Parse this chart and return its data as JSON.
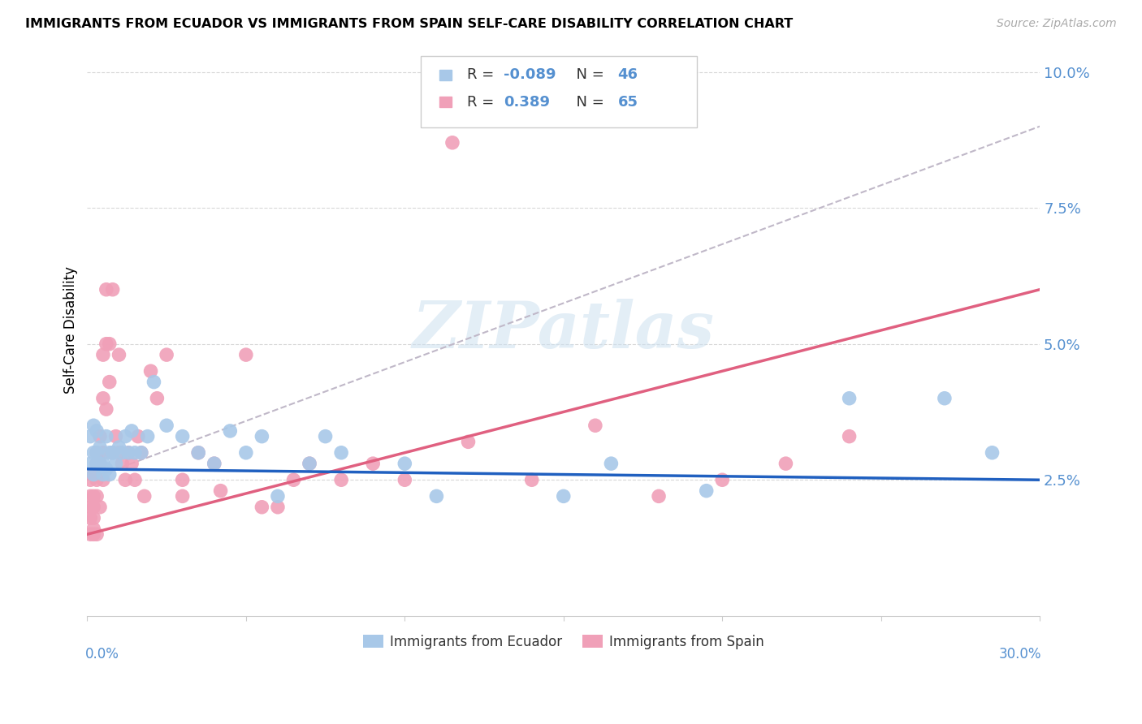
{
  "title": "IMMIGRANTS FROM ECUADOR VS IMMIGRANTS FROM SPAIN SELF-CARE DISABILITY CORRELATION CHART",
  "source": "Source: ZipAtlas.com",
  "ylabel": "Self-Care Disability",
  "xlim": [
    0.0,
    0.3
  ],
  "ylim": [
    0.0,
    0.105
  ],
  "yticks": [
    0.025,
    0.05,
    0.075,
    0.1
  ],
  "ytick_labels": [
    "2.5%",
    "5.0%",
    "7.5%",
    "10.0%"
  ],
  "xticks": [
    0.0,
    0.05,
    0.1,
    0.15,
    0.2,
    0.25,
    0.3
  ],
  "ecuador_color": "#a8c8e8",
  "spain_color": "#f0a0b8",
  "ecuador_line_color": "#2060c0",
  "spain_line_color": "#e06080",
  "dash_line_color": "#c0b8c8",
  "ecuador_R": -0.089,
  "ecuador_N": 46,
  "spain_R": 0.389,
  "spain_N": 65,
  "legend_label_ecuador": "Immigrants from Ecuador",
  "legend_label_spain": "Immigrants from Spain",
  "watermark": "ZIPatlas",
  "ecuador_line_x0": 0.0,
  "ecuador_line_y0": 0.027,
  "ecuador_line_x1": 0.3,
  "ecuador_line_y1": 0.025,
  "spain_line_x0": 0.0,
  "spain_line_y0": 0.015,
  "spain_line_x1": 0.3,
  "spain_line_y1": 0.06,
  "dash_line_x0": 0.0,
  "dash_line_y0": 0.025,
  "dash_line_x1": 0.3,
  "dash_line_y1": 0.09,
  "ecuador_pts_x": [
    0.001,
    0.001,
    0.002,
    0.002,
    0.002,
    0.003,
    0.003,
    0.003,
    0.004,
    0.004,
    0.005,
    0.005,
    0.006,
    0.006,
    0.007,
    0.007,
    0.008,
    0.009,
    0.01,
    0.011,
    0.012,
    0.013,
    0.014,
    0.015,
    0.017,
    0.019,
    0.021,
    0.025,
    0.03,
    0.035,
    0.04,
    0.045,
    0.05,
    0.055,
    0.06,
    0.07,
    0.075,
    0.08,
    0.1,
    0.11,
    0.15,
    0.165,
    0.195,
    0.24,
    0.27,
    0.285
  ],
  "ecuador_pts_y": [
    0.028,
    0.033,
    0.03,
    0.026,
    0.035,
    0.03,
    0.028,
    0.034,
    0.028,
    0.031,
    0.026,
    0.028,
    0.033,
    0.027,
    0.03,
    0.026,
    0.03,
    0.028,
    0.031,
    0.03,
    0.033,
    0.03,
    0.034,
    0.03,
    0.03,
    0.033,
    0.043,
    0.035,
    0.033,
    0.03,
    0.028,
    0.034,
    0.03,
    0.033,
    0.022,
    0.028,
    0.033,
    0.03,
    0.028,
    0.022,
    0.022,
    0.028,
    0.023,
    0.04,
    0.04,
    0.03
  ],
  "spain_pts_x": [
    0.001,
    0.001,
    0.001,
    0.001,
    0.001,
    0.002,
    0.002,
    0.002,
    0.002,
    0.002,
    0.002,
    0.003,
    0.003,
    0.003,
    0.003,
    0.003,
    0.004,
    0.004,
    0.004,
    0.005,
    0.005,
    0.005,
    0.005,
    0.006,
    0.006,
    0.006,
    0.007,
    0.007,
    0.008,
    0.008,
    0.009,
    0.01,
    0.01,
    0.011,
    0.012,
    0.013,
    0.014,
    0.015,
    0.016,
    0.017,
    0.018,
    0.02,
    0.022,
    0.025,
    0.03,
    0.03,
    0.035,
    0.04,
    0.042,
    0.05,
    0.055,
    0.06,
    0.065,
    0.07,
    0.08,
    0.09,
    0.1,
    0.12,
    0.14,
    0.16,
    0.18,
    0.2,
    0.22,
    0.24,
    0.115
  ],
  "spain_pts_y": [
    0.022,
    0.02,
    0.018,
    0.025,
    0.015,
    0.018,
    0.022,
    0.026,
    0.015,
    0.02,
    0.016,
    0.025,
    0.028,
    0.022,
    0.03,
    0.015,
    0.028,
    0.033,
    0.02,
    0.03,
    0.048,
    0.025,
    0.04,
    0.05,
    0.06,
    0.038,
    0.05,
    0.043,
    0.03,
    0.06,
    0.033,
    0.048,
    0.03,
    0.028,
    0.025,
    0.03,
    0.028,
    0.025,
    0.033,
    0.03,
    0.022,
    0.045,
    0.04,
    0.048,
    0.025,
    0.022,
    0.03,
    0.028,
    0.023,
    0.048,
    0.02,
    0.02,
    0.025,
    0.028,
    0.025,
    0.028,
    0.025,
    0.032,
    0.025,
    0.035,
    0.022,
    0.025,
    0.028,
    0.033,
    0.087
  ]
}
